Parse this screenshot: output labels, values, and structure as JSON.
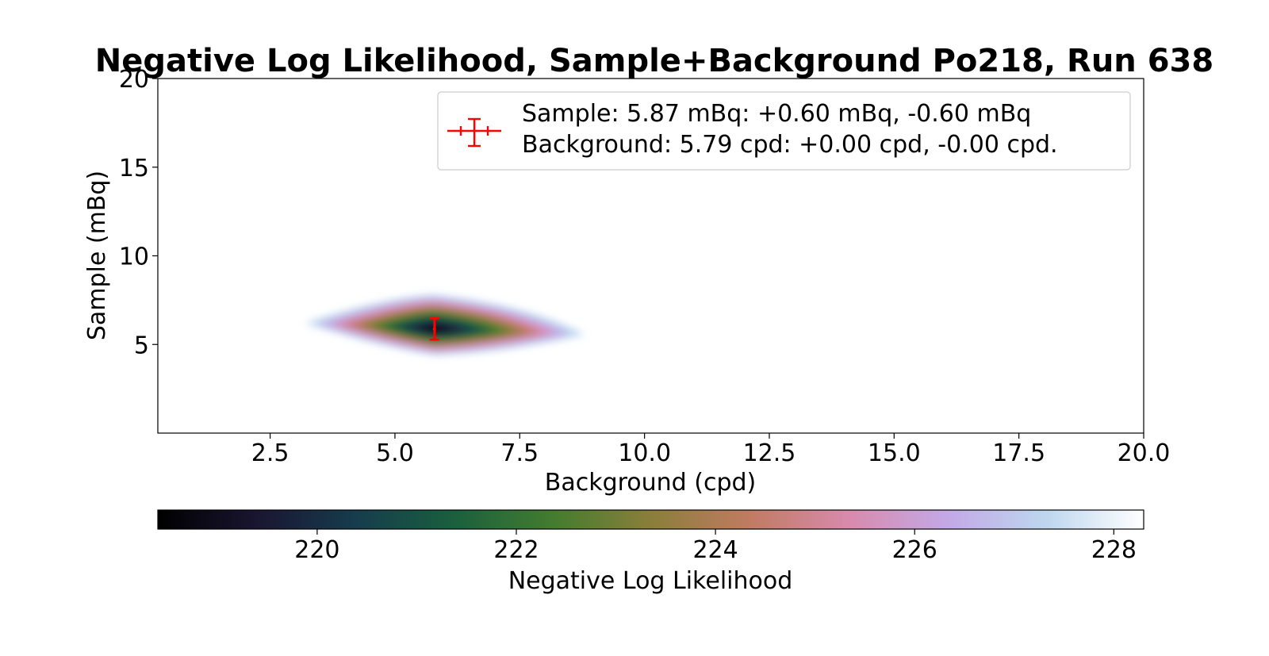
{
  "chart_data": {
    "type": "heatmap",
    "title": "Negative Log Likelihood, Sample+Background Po218, Run 638",
    "xlabel": "Background (cpd)",
    "ylabel": "Sample (mBq)",
    "xlim": [
      0.25,
      20.0
    ],
    "ylim": [
      0.0,
      20.0
    ],
    "xticks": [
      2.5,
      5.0,
      7.5,
      10.0,
      12.5,
      15.0,
      17.5,
      20.0
    ],
    "xtick_labels": [
      "2.5",
      "5.0",
      "7.5",
      "10.0",
      "12.5",
      "15.0",
      "17.5",
      "20.0"
    ],
    "yticks": [
      5,
      10,
      15,
      20
    ],
    "ytick_labels": [
      "5",
      "10",
      "15",
      "20"
    ],
    "colormap": "cubehelix",
    "colorbar": {
      "label": "Negative Log Likelihood",
      "range": [
        218.4,
        228.3
      ],
      "ticks": [
        220,
        222,
        224,
        226,
        228
      ],
      "tick_labels": [
        "220",
        "222",
        "224",
        "226",
        "228"
      ],
      "orientation": "horizontal"
    },
    "minimum": {
      "x": 5.79,
      "y": 5.87,
      "value": 218.4
    },
    "contour_extent": {
      "x": [
        3.2,
        8.8
      ],
      "y": [
        4.4,
        7.8
      ]
    },
    "best_fit": {
      "background": 5.79,
      "background_err_plus": 0.0,
      "background_err_minus": 0.0,
      "sample": 5.87,
      "sample_err_plus": 0.6,
      "sample_err_minus": 0.6,
      "marker_color": "#ff0000"
    },
    "legend": {
      "placement": "upper right",
      "entries": [
        "Sample: 5.87 mBq: +0.60 mBq, -0.60 mBq",
        "Background: 5.79 cpd: +0.00 cpd, -0.00 cpd."
      ]
    },
    "grid": false
  }
}
